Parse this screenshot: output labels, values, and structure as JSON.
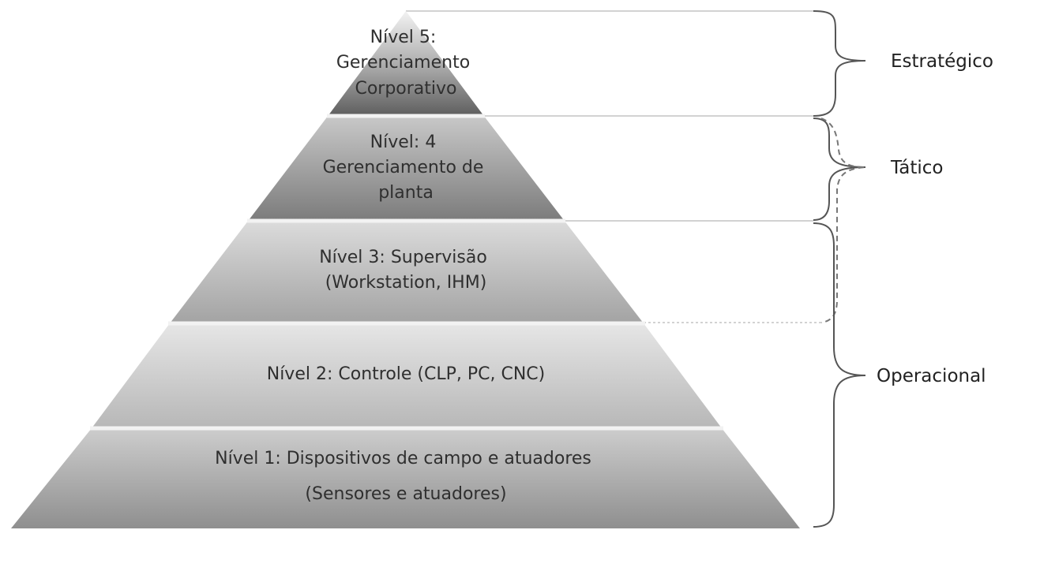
{
  "levels": [
    {
      "lines": [
        "Nível 5:",
        "Gerenciamento",
        "Corporativo"
      ]
    },
    {
      "lines": [
        "Nível: 4",
        "Gerenciamento de",
        "planta"
      ]
    },
    {
      "lines": [
        "Nível 3: Supervisão",
        "(Workstation, IHM)"
      ]
    },
    {
      "lines": [
        "Nível 2: Controle (CLP, PC, CNC)"
      ]
    },
    {
      "lines": [
        "Nível 1: Dispositivos de campo e atuadores",
        "(Sensores e atuadores)"
      ]
    }
  ],
  "groups": {
    "strategic": "Estratégico",
    "tactical": "Tático",
    "operational": "Operacional"
  },
  "colors": {
    "level5": "#5a5a5a",
    "level4": "#7a7a7a",
    "level3": "#9c9c9c",
    "level2": "#b4b4b4",
    "level1": "#9a9a9a"
  }
}
